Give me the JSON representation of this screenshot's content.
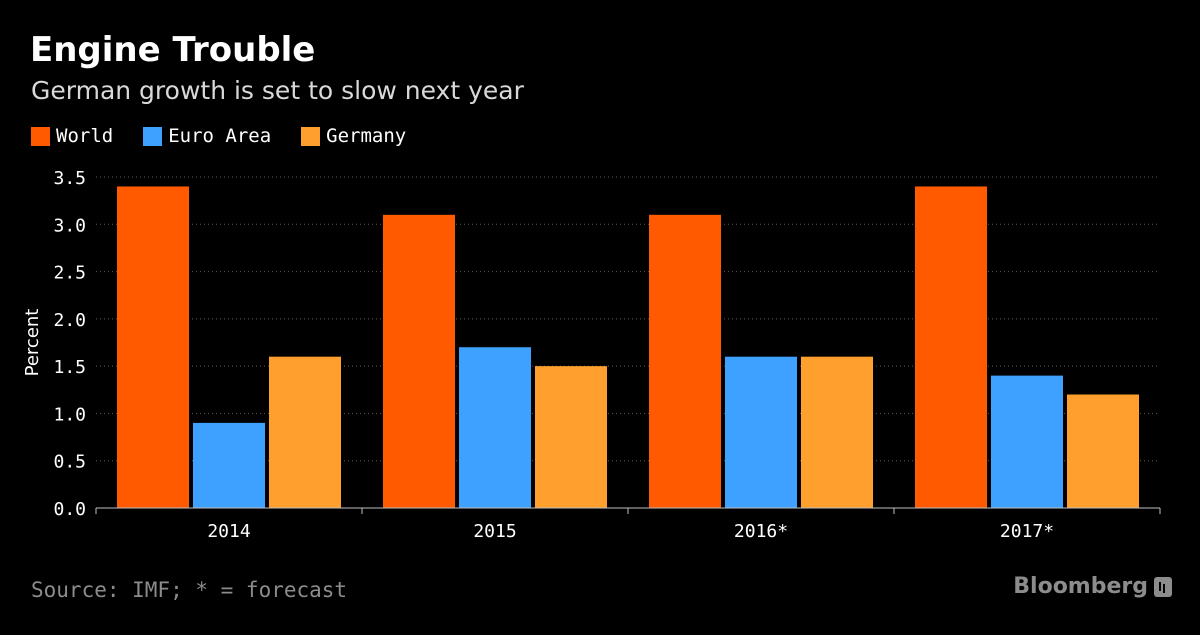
{
  "colors": {
    "world": "#ff5a00",
    "euro_area": "#3ea1ff",
    "germany": "#ff9f2e"
  },
  "brand": {
    "name": "Bloomberg",
    "icon": "bloomberg-logo-icon"
  },
  "source": "Source: IMF; * = forecast",
  "chart_data": {
    "type": "bar",
    "title": "Engine Trouble",
    "subtitle": "German growth is set to slow next year",
    "xlabel": "",
    "ylabel": "Percent",
    "ylim": [
      0,
      3.5
    ],
    "yticks": [
      "0.0",
      "0.5",
      "1.0",
      "1.5",
      "2.0",
      "2.5",
      "3.0",
      "3.5"
    ],
    "categories": [
      "2014",
      "2015",
      "2016*",
      "2017*"
    ],
    "series": [
      {
        "name": "World",
        "key": "world",
        "values": [
          3.4,
          3.1,
          3.1,
          3.4
        ]
      },
      {
        "name": "Euro Area",
        "key": "euro_area",
        "values": [
          0.9,
          1.7,
          1.6,
          1.4
        ]
      },
      {
        "name": "Germany",
        "key": "germany",
        "values": [
          1.6,
          1.5,
          1.6,
          1.2
        ]
      }
    ],
    "grid": true,
    "legend_position": "top-left"
  }
}
